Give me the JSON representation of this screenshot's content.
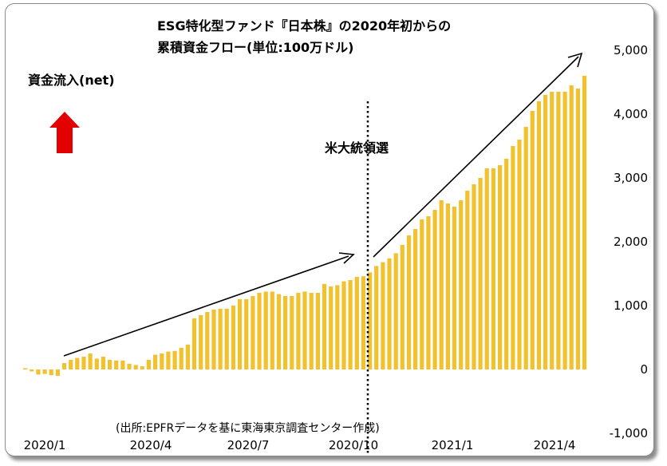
{
  "chart_data": {
    "type": "bar",
    "title_line1": "ESG特化型ファンド『日本株』の2020年初からの",
    "title_line2": "累積資金フロー(単位:100万ドル)",
    "inflow_label": "資金流入(net)",
    "event_label": "米大統領選",
    "source": "(出所:EPFRデータを基に東海東京調査センター作成)",
    "ylim": [
      -1000,
      5000
    ],
    "y_ticks": [
      "5,000",
      "4,000",
      "3,000",
      "2,000",
      "1,000",
      "0",
      "-1,000"
    ],
    "x_ticks": [
      "2020/1",
      "2020/4",
      "2020/7",
      "2020/10",
      "2021/1",
      "2021/4"
    ],
    "bar_color": "#f2c12e",
    "arrow_color": "#e30000",
    "values": [
      20,
      -30,
      -80,
      -70,
      -90,
      -100,
      100,
      150,
      180,
      200,
      250,
      170,
      200,
      150,
      140,
      140,
      90,
      70,
      50,
      150,
      230,
      250,
      280,
      290,
      340,
      390,
      800,
      850,
      900,
      940,
      950,
      950,
      1000,
      1100,
      1100,
      1150,
      1200,
      1220,
      1220,
      1180,
      1150,
      1150,
      1200,
      1220,
      1200,
      1200,
      1340,
      1300,
      1320,
      1380,
      1400,
      1450,
      1460,
      1520,
      1620,
      1680,
      1740,
      1820,
      1950,
      2100,
      2200,
      2350,
      2400,
      2500,
      2650,
      2600,
      2550,
      2650,
      2800,
      2900,
      3000,
      3150,
      3150,
      3200,
      3300,
      3500,
      3600,
      3800,
      4050,
      4200,
      4300,
      4350,
      4350,
      4350,
      4450,
      4400,
      4600
    ]
  }
}
